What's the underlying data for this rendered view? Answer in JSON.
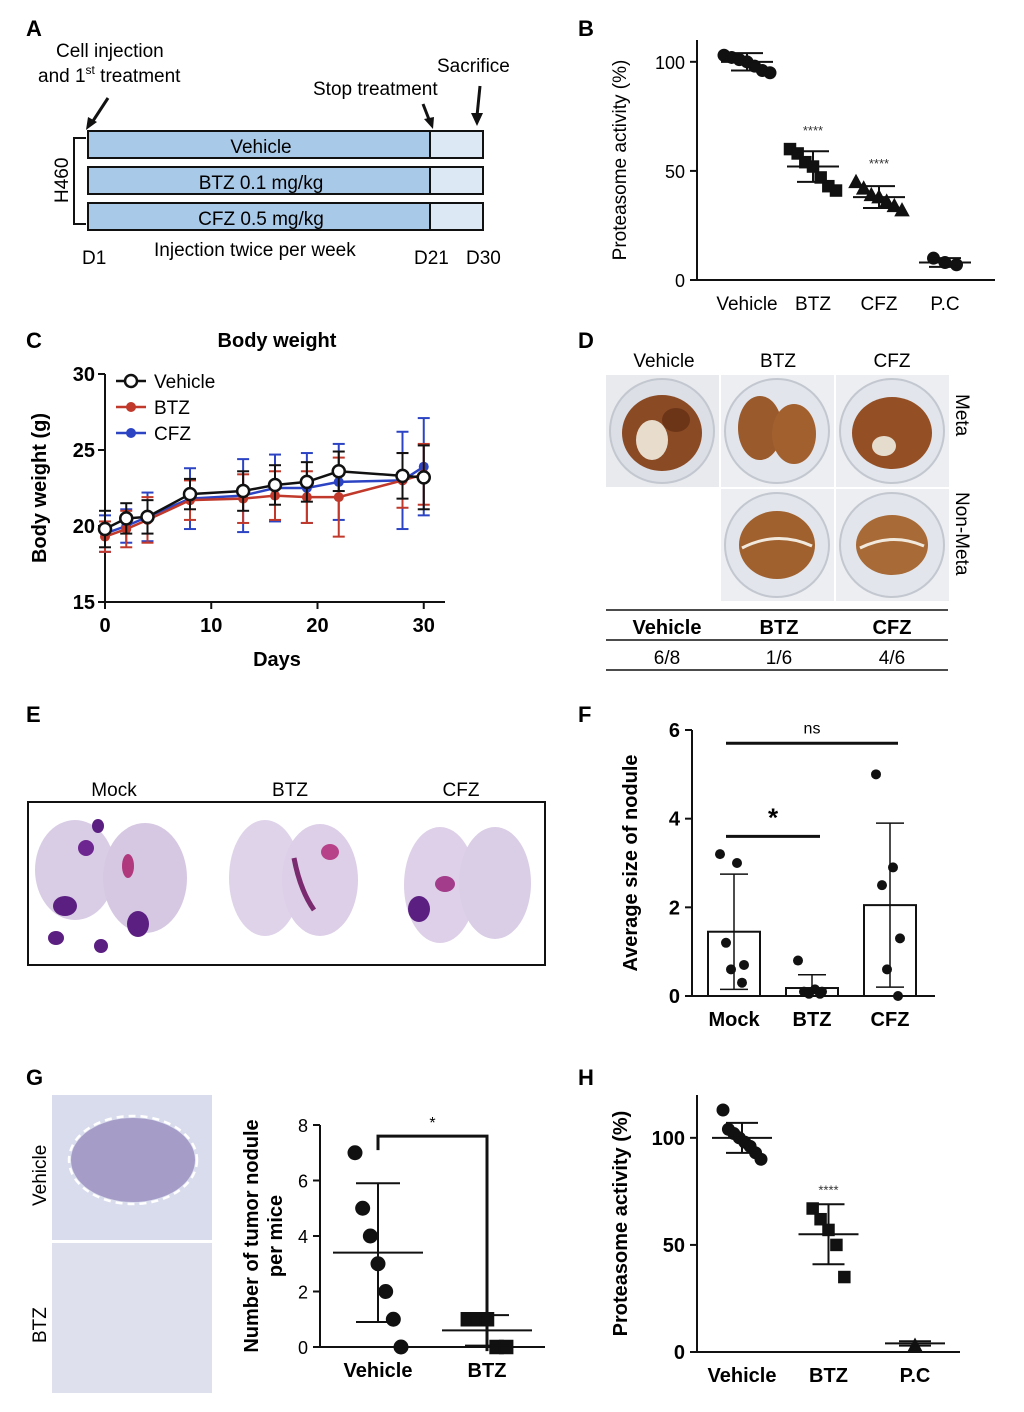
{
  "panels": {
    "A": {
      "letter": "A",
      "cell_injection_line1": "Cell injection",
      "cell_injection_line2a": "and 1",
      "cell_injection_sup": "st",
      "cell_injection_line2b": " treatment",
      "stop_treatment": "Stop treatment",
      "sacrifice": "Sacrifice",
      "cell_line": "H460",
      "bars": [
        "Vehicle",
        "BTZ 0.1 mg/kg",
        "CFZ 0.5 mg/kg"
      ],
      "day_start": "D1",
      "day_stop": "D21",
      "day_end": "D30",
      "schedule": "Injection twice per week",
      "colors": {
        "treatment": "#a9c9e8",
        "washout": "#dce8f4"
      }
    },
    "D": {
      "letter": "D",
      "columns": [
        "Vehicle",
        "BTZ",
        "CFZ"
      ],
      "rows": [
        "Meta",
        "Non-Meta"
      ],
      "table_header": [
        "Vehicle",
        "BTZ",
        "CFZ"
      ],
      "table_values": [
        "6/8",
        "1/6",
        "4/6"
      ]
    },
    "E": {
      "letter": "E",
      "columns": [
        "Mock",
        "BTZ",
        "CFZ"
      ]
    },
    "G_image": {
      "letter": "G",
      "rows": [
        "Vehicle",
        "BTZ"
      ]
    }
  },
  "chart_data": [
    {
      "id": "B",
      "letter": "B",
      "type": "scatter",
      "ylabel": "Proteasome activity (%)",
      "categories": [
        "Vehicle",
        "BTZ",
        "CFZ",
        "P.C"
      ],
      "yticks": [
        0,
        50,
        100
      ],
      "ylim": [
        0,
        110
      ],
      "significance": [
        "",
        "****",
        "****",
        ""
      ],
      "markers": [
        "circle",
        "square",
        "triangle",
        "circle"
      ],
      "points": [
        [
          103,
          102,
          101,
          100,
          98,
          96,
          95
        ],
        [
          60,
          58,
          54,
          52,
          47,
          43,
          41
        ],
        [
          45,
          42,
          39,
          38,
          36,
          34,
          32
        ],
        [
          10,
          8,
          7
        ]
      ],
      "mean": [
        100,
        52,
        38,
        8
      ],
      "sd": [
        4,
        7,
        5,
        2
      ]
    },
    {
      "id": "C",
      "letter": "C",
      "type": "line",
      "title": "Body weight",
      "xlabel": "Days",
      "ylabel": "Body weight (g)",
      "xticks": [
        0,
        10,
        20,
        30
      ],
      "yticks": [
        15,
        20,
        25,
        30
      ],
      "xlim": [
        0,
        32
      ],
      "ylim": [
        15,
        30
      ],
      "x": [
        0,
        2,
        4,
        8,
        13,
        16,
        19,
        22,
        28,
        30
      ],
      "series": [
        {
          "name": "Vehicle",
          "color": "#111111",
          "values": [
            19.8,
            20.5,
            20.6,
            22.1,
            22.3,
            22.7,
            22.9,
            23.6,
            23.3,
            23.2
          ],
          "sd": [
            1.2,
            1.0,
            1.1,
            1.0,
            1.3,
            1.3,
            1.3,
            1.3,
            1.5,
            2.1
          ]
        },
        {
          "name": "BTZ",
          "color": "#c0392b",
          "values": [
            19.3,
            19.8,
            20.4,
            21.7,
            21.8,
            22.0,
            21.9,
            21.9,
            23.0,
            23.4
          ],
          "sd": [
            1.0,
            1.2,
            1.5,
            1.3,
            1.6,
            1.6,
            1.7,
            2.6,
            1.8,
            2.0
          ]
        },
        {
          "name": "CFZ",
          "color": "#2c44c4",
          "values": [
            19.5,
            20.0,
            20.6,
            21.8,
            22.0,
            22.5,
            22.5,
            22.9,
            23.0,
            23.9
          ],
          "sd": [
            1.2,
            1.1,
            1.6,
            2.0,
            2.4,
            2.2,
            2.3,
            2.5,
            3.2,
            3.2
          ]
        }
      ]
    },
    {
      "id": "F",
      "letter": "F",
      "type": "bar",
      "ylabel": "Average size of nodule",
      "categories": [
        "Mock",
        "BTZ",
        "CFZ"
      ],
      "yticks": [
        0,
        2,
        4,
        6
      ],
      "ylim": [
        0,
        6
      ],
      "values": [
        1.45,
        0.18,
        2.05
      ],
      "sd": [
        1.3,
        0.3,
        1.85
      ],
      "points": [
        [
          3.2,
          3.0,
          1.2,
          0.7,
          0.6,
          0.3
        ],
        [
          0.8,
          0.15,
          0.1,
          0.1,
          0.05,
          0.05
        ],
        [
          5.0,
          2.9,
          2.5,
          1.3,
          0.6,
          0.0
        ]
      ],
      "sig_brackets": [
        {
          "from": 0,
          "to": 2,
          "label": "ns",
          "y": 5.7
        },
        {
          "from": 0,
          "to": 1,
          "label": "*",
          "y": 3.6
        }
      ]
    },
    {
      "id": "G",
      "letter": "",
      "type": "scatter",
      "ylabel": "Number of tumor nodule per mice",
      "categories": [
        "Vehicle",
        "BTZ"
      ],
      "yticks": [
        0,
        2,
        4,
        6,
        8
      ],
      "ylim": [
        0,
        8
      ],
      "markers": [
        "circle",
        "square"
      ],
      "points": [
        [
          7,
          5,
          4,
          3,
          2,
          1,
          0
        ],
        [
          1,
          1,
          1,
          0,
          0
        ]
      ],
      "mean": [
        3.4,
        0.6
      ],
      "sd": [
        2.5,
        0.55
      ],
      "sig_brackets": [
        {
          "from": 0,
          "to": 1,
          "label": "*",
          "y": 7.6
        }
      ]
    },
    {
      "id": "H",
      "letter": "H",
      "type": "scatter",
      "ylabel": "Proteasome activity (%)",
      "categories": [
        "Vehicle",
        "BTZ",
        "P.C"
      ],
      "yticks": [
        0,
        50,
        100
      ],
      "ylim": [
        0,
        120
      ],
      "significance": [
        "",
        "****",
        ""
      ],
      "markers": [
        "circle",
        "square",
        "triangle"
      ],
      "points": [
        [
          113,
          104,
          102,
          100,
          98,
          96,
          93,
          90
        ],
        [
          67,
          62,
          57,
          50,
          35
        ],
        [
          3
        ]
      ],
      "mean": [
        100,
        55,
        4
      ],
      "sd": [
        7,
        14,
        1
      ]
    }
  ]
}
